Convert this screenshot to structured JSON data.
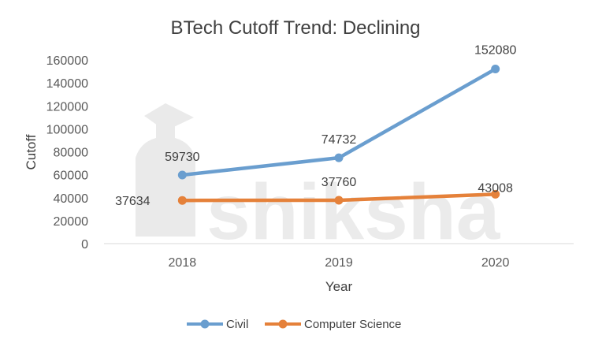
{
  "chart_data": {
    "type": "line",
    "title": "BTech Cutoff Trend: Declining",
    "xlabel": "Year",
    "ylabel": "Cutoff",
    "categories": [
      "2018",
      "2019",
      "2020"
    ],
    "ylim": [
      0,
      160000
    ],
    "yticks": [
      0,
      20000,
      40000,
      60000,
      80000,
      100000,
      120000,
      140000,
      160000
    ],
    "grid": "none",
    "legend_position": "bottom",
    "series": [
      {
        "name": "Civil",
        "values": [
          59730,
          74732,
          152080
        ],
        "color": "#6A9ECF"
      },
      {
        "name": "Computer Science",
        "values": [
          37634,
          37760,
          43008
        ],
        "color": "#E5813A"
      }
    ]
  },
  "watermark": {
    "text": "shiksha",
    "color": "#E8E8E8"
  },
  "colors": {
    "axis": "#D9D9D9",
    "text": "#404040",
    "tick_text": "#595959"
  }
}
